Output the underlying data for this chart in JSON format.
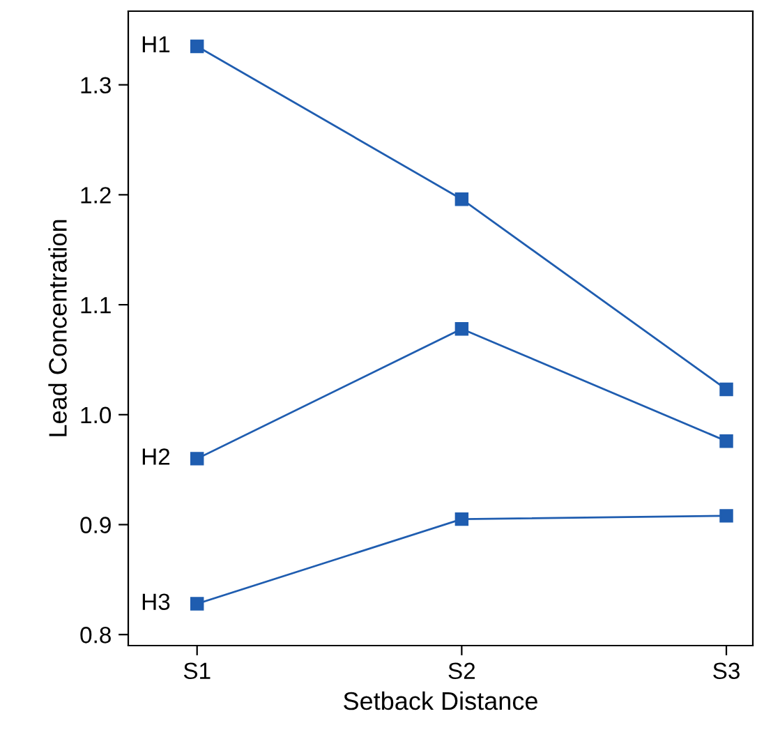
{
  "chart_data": {
    "type": "line",
    "xlabel": "Setback Distance",
    "ylabel": "Lead Concentration",
    "categories": [
      "S1",
      "S2",
      "S3"
    ],
    "series": [
      {
        "name": "H1",
        "color": "#1f5db0",
        "values": [
          1.335,
          1.196,
          1.023
        ]
      },
      {
        "name": "H2",
        "color": "#1f5db0",
        "values": [
          0.96,
          1.078,
          0.976
        ]
      },
      {
        "name": "H3",
        "color": "#1f5db0",
        "values": [
          0.828,
          0.905,
          0.908
        ]
      }
    ],
    "ylim": [
      0.79,
      1.367
    ],
    "yticks": [
      {
        "value": 0.8,
        "label": "0.8"
      },
      {
        "value": 0.9,
        "label": "0.9"
      },
      {
        "value": 1.0,
        "label": "1.0"
      },
      {
        "value": 1.1,
        "label": "1.1"
      },
      {
        "value": 1.2,
        "label": "1.2"
      },
      {
        "value": 1.3,
        "label": "1.3"
      }
    ],
    "marker": "square",
    "line_style": "solid",
    "grid": false,
    "legend": false
  }
}
